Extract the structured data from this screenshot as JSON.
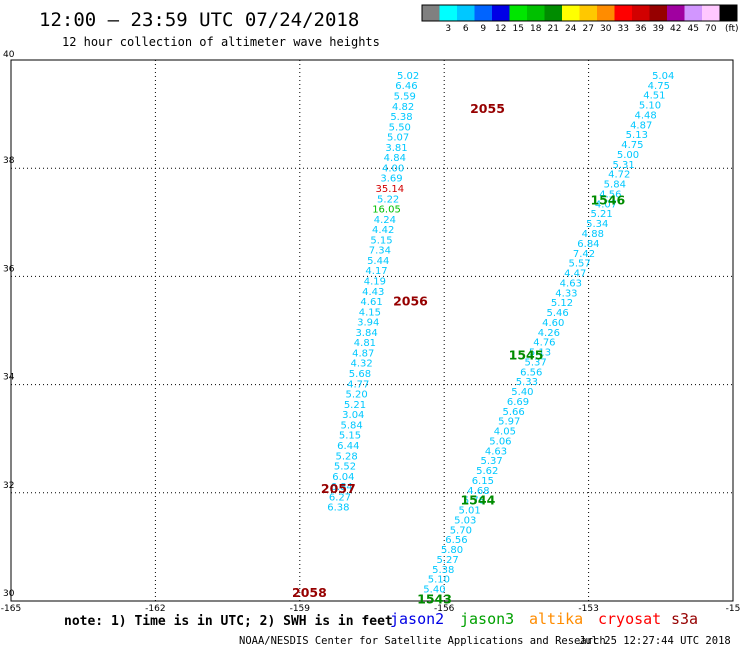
{
  "header": {
    "title": "12:00 – 23:59 UTC 07/24/2018",
    "subtitle": "12 hour collection of altimeter wave heights"
  },
  "color_scale": {
    "unit": "(ft)",
    "bins": [
      {
        "label": "",
        "color": "#808080"
      },
      {
        "label": "3",
        "color": "#00ffff"
      },
      {
        "label": "6",
        "color": "#00c8ff"
      },
      {
        "label": "9",
        "color": "#0064ff"
      },
      {
        "label": "12",
        "color": "#0000e6"
      },
      {
        "label": "15",
        "color": "#00e600"
      },
      {
        "label": "18",
        "color": "#00c000"
      },
      {
        "label": "21",
        "color": "#008c00"
      },
      {
        "label": "24",
        "color": "#ffff00"
      },
      {
        "label": "27",
        "color": "#ffc800"
      },
      {
        "label": "30",
        "color": "#ff8c00"
      },
      {
        "label": "33",
        "color": "#ff0000"
      },
      {
        "label": "36",
        "color": "#d20000"
      },
      {
        "label": "39",
        "color": "#960000"
      },
      {
        "label": "42",
        "color": "#a000a0"
      },
      {
        "label": "45",
        "color": "#d296ff"
      },
      {
        "label": "70",
        "color": "#ffc8ff"
      },
      {
        "label": "",
        "color": "#000000"
      }
    ]
  },
  "chart_data": {
    "type": "scatter",
    "x_ticks": [
      "-165",
      "-162",
      "-159",
      "-156",
      "-153",
      "-15"
    ],
    "y_ticks": [
      "40",
      "38",
      "36",
      "34",
      "32",
      "30"
    ],
    "xlim": [
      -165,
      -150
    ],
    "ylim": [
      30,
      40
    ],
    "grid": true,
    "swh_color": "#00c8ff",
    "tracks": [
      {
        "satellite": "jason2",
        "start": {
          "lon": -156.75,
          "lat": 39.65
        },
        "step": {
          "lon": -0.0345,
          "lat": -0.19
        },
        "values": [
          "5.02",
          "6.46",
          "5.59",
          "4.82",
          "5.38",
          "5.50",
          "5.07",
          "3.81",
          "4.84",
          "4.00",
          "3.69",
          "35.14",
          "5.22",
          "16.05",
          "4.24",
          "4.42",
          "5.15",
          "7.34",
          "5.44",
          "4.17",
          "4.19",
          "4.43",
          "4.61",
          "4.15",
          "3.94",
          "3.84",
          "4.81",
          "4.87",
          "4.32",
          "5.68",
          "4.77",
          "5.20",
          "5.21",
          "3.04",
          "5.84",
          "5.15",
          "6.44",
          "5.28",
          "5.52",
          "6.04",
          "6.84",
          "6.27",
          "6.38"
        ],
        "colors": {
          "11": "#d20000",
          "13": "#00c000"
        },
        "pass_labels": [
          {
            "text": "2055",
            "lon": -155.1,
            "lat": 39.02
          },
          {
            "text": "2056",
            "lon": -156.7,
            "lat": 35.46
          },
          {
            "text": "2057",
            "lon": -158.2,
            "lat": 32.0
          },
          {
            "text": "2058",
            "lon": -158.8,
            "lat": 30.07
          }
        ],
        "pass_color": "#960000"
      },
      {
        "satellite": "jason3",
        "start": {
          "lon": -151.45,
          "lat": 39.65
        },
        "step": {
          "lon": -0.0914,
          "lat": -0.1826
        },
        "values": [
          "5.04",
          "4.75",
          "4.51",
          "5.10",
          "4.48",
          "4.87",
          "5.13",
          "4.75",
          "5.00",
          "5.31",
          "4.72",
          "5.84",
          "4.56",
          "4.07",
          "5.21",
          "5.34",
          "4.88",
          "6.84",
          "7.42",
          "5.57",
          "4.47",
          "4.63",
          "4.33",
          "5.12",
          "5.46",
          "4.60",
          "4.26",
          "4.76",
          "5.13",
          "5.37",
          "6.56",
          "5.33",
          "5.40",
          "6.69",
          "5.66",
          "5.97",
          "4.05",
          "5.06",
          "4.63",
          "5.37",
          "5.62",
          "6.15",
          "4.68",
          "5.78",
          "5.01",
          "5.03",
          "5.70",
          "6.56",
          "5.80",
          "5.27",
          "5.38",
          "5.10",
          "5.40"
        ],
        "colors": {},
        "pass_labels": [
          {
            "text": "1546",
            "lon": -152.6,
            "lat": 37.33
          },
          {
            "text": "1545",
            "lon": -154.3,
            "lat": 34.46
          },
          {
            "text": "1544",
            "lon": -155.3,
            "lat": 31.78
          },
          {
            "text": "1543",
            "lon": -156.2,
            "lat": 29.95
          }
        ],
        "pass_color": "#008c00"
      }
    ]
  },
  "note": "note: 1) Time is in UTC; 2) SWH is in feet",
  "missions": [
    {
      "label": "jason2",
      "color": "#0000e6"
    },
    {
      "label": "jason3",
      "color": "#00a000"
    },
    {
      "label": "altika",
      "color": "#ff8c00"
    },
    {
      "label": "cryosat",
      "color": "#ff0000"
    },
    {
      "label": "s3a",
      "color": "#960000"
    }
  ],
  "footer": {
    "credit": "NOAA/NESDIS Center for Satellite Applications and Research",
    "timestamp": "Jul 25 12:27:44 UTC 2018"
  }
}
